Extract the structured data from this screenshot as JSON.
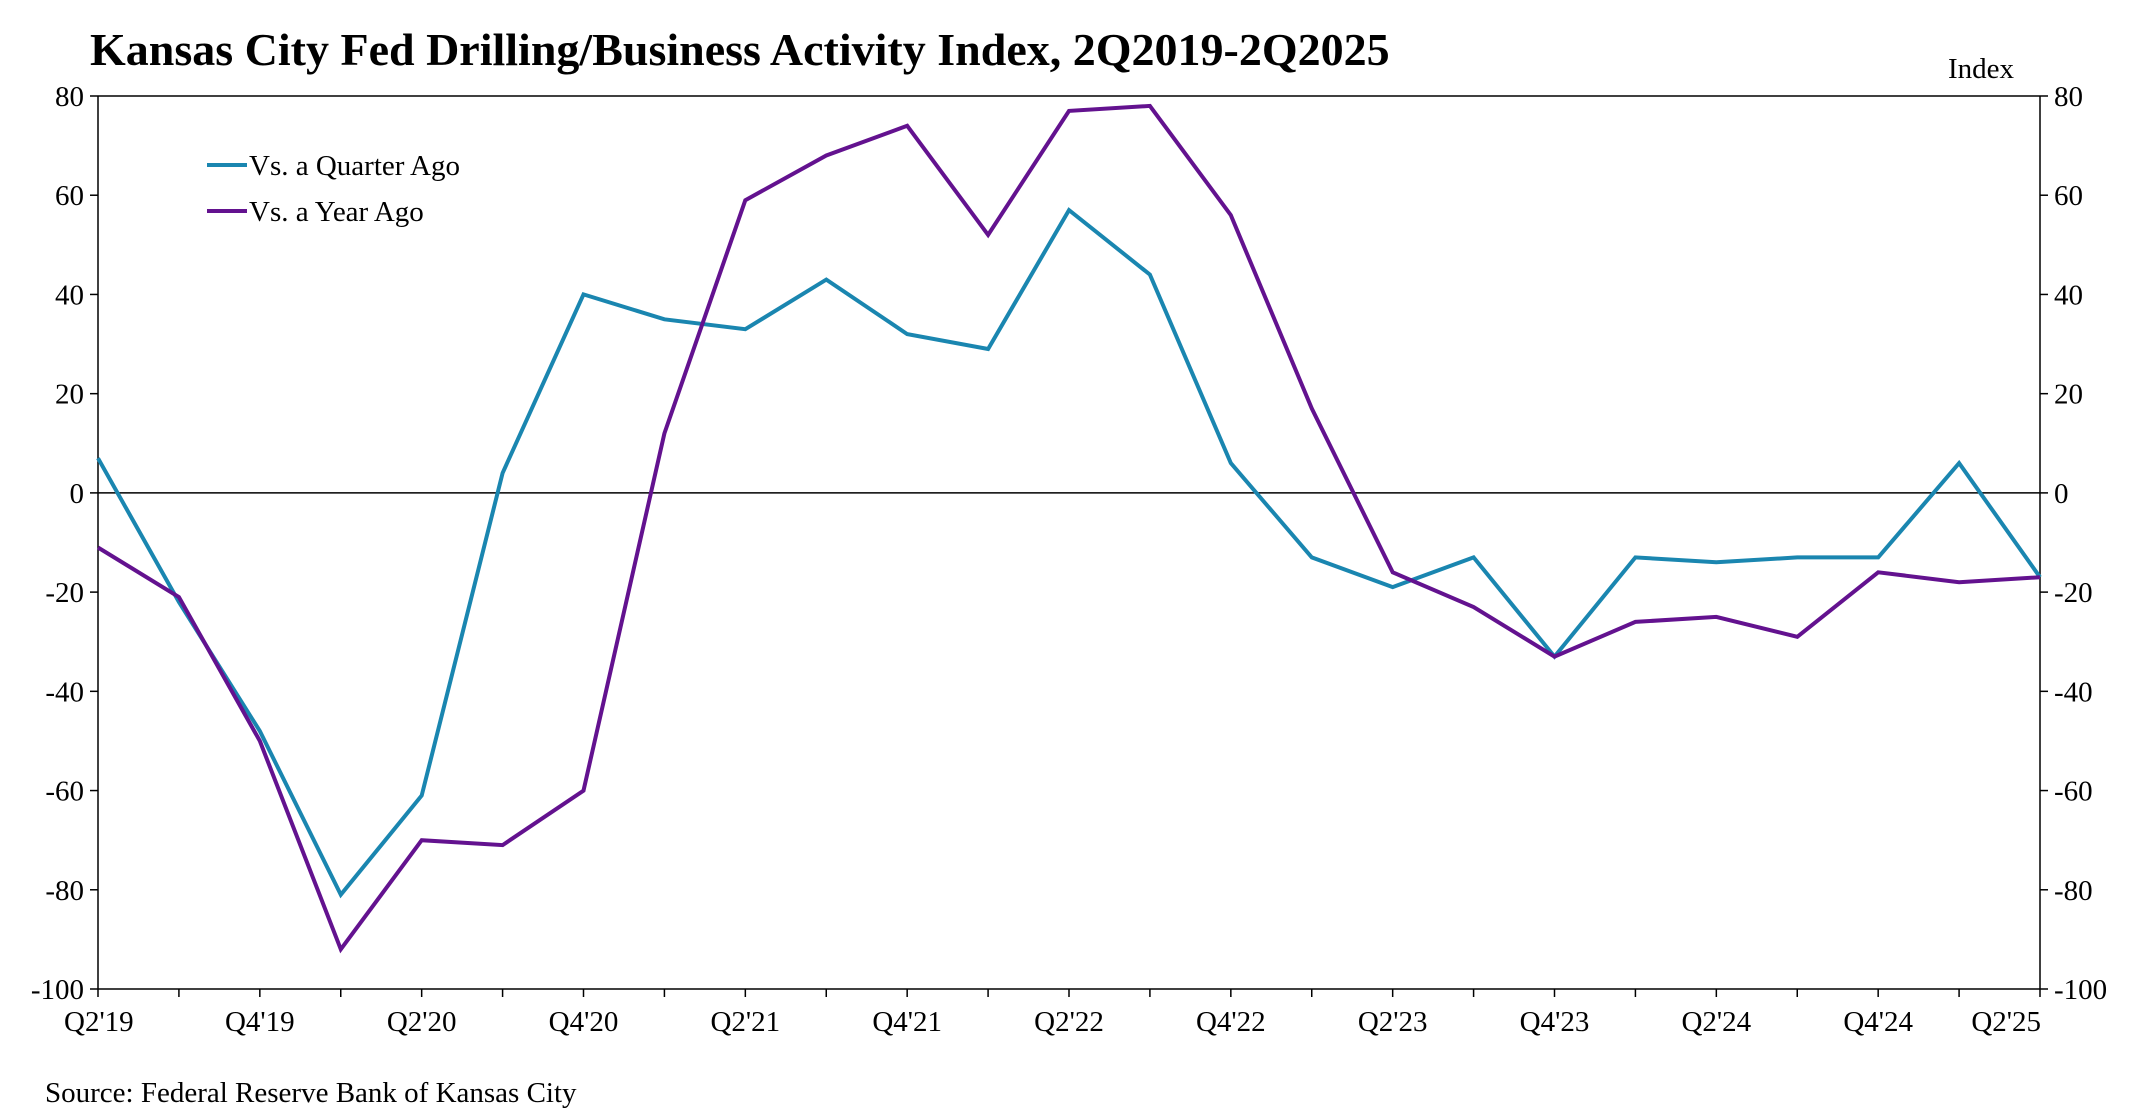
{
  "chart_data": {
    "type": "line",
    "title": "Kansas City Fed Drilling/Business Activity Index, 2Q2019-2Q2025",
    "ylabel_right": "Index",
    "source": "Source: Federal Reserve Bank of Kansas City",
    "ylim": [
      -100,
      80
    ],
    "yticks": [
      80,
      60,
      40,
      20,
      0,
      -20,
      -40,
      -60,
      -80,
      -100
    ],
    "categories": [
      "Q2'19",
      "Q3'19",
      "Q4'19",
      "Q1'20",
      "Q2'20",
      "Q3'20",
      "Q4'20",
      "Q1'21",
      "Q2'21",
      "Q3'21",
      "Q4'21",
      "Q1'22",
      "Q2'22",
      "Q3'22",
      "Q4'22",
      "Q1'23",
      "Q2'23",
      "Q3'23",
      "Q4'23",
      "Q1'24",
      "Q2'24",
      "Q3'24",
      "Q4'24",
      "Q1'25",
      "Q2'25"
    ],
    "tick_labels": [
      "Q2'19",
      "Q4'19",
      "Q2'20",
      "Q4'20",
      "Q2'21",
      "Q4'21",
      "Q2'22",
      "Q4'22",
      "Q2'23",
      "Q4'23",
      "Q2'24",
      "Q4'24",
      "Q2'25"
    ],
    "zero_line": true,
    "grid": false,
    "legend_position": "top-left",
    "series": [
      {
        "name": "Vs. a Quarter Ago",
        "color": "#1a86b0",
        "values": [
          7,
          -22,
          -48,
          -81,
          -61,
          4,
          40,
          35,
          33,
          43,
          32,
          29,
          57,
          44,
          6,
          -13,
          -19,
          -13,
          -33,
          -13,
          -14,
          -13,
          -13,
          6,
          -17
        ]
      },
      {
        "name": "Vs. a Year Ago",
        "color": "#63128f",
        "values": [
          -11,
          -21,
          -50,
          -92,
          -70,
          -71,
          -60,
          12,
          59,
          68,
          74,
          52,
          77,
          78,
          56,
          17,
          -16,
          -23,
          -33,
          -26,
          -25,
          -29,
          -16,
          -18,
          -17
        ]
      }
    ]
  }
}
